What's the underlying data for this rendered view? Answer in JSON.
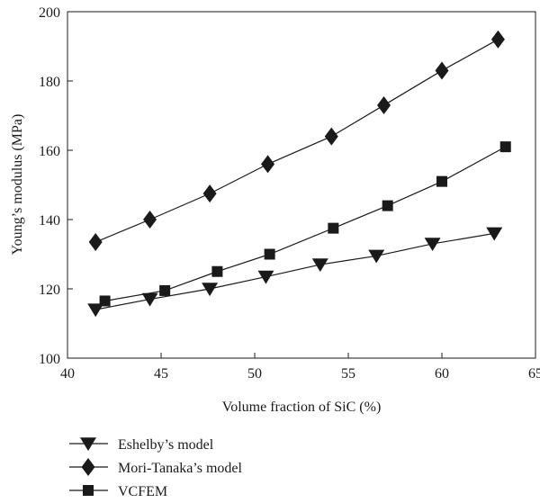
{
  "chart_data": {
    "type": "line",
    "title": "",
    "xlabel": "Volume fraction of SiC (%)",
    "ylabel": "Young’s modulus (MPa)",
    "xlim": [
      40,
      65
    ],
    "ylim": [
      100,
      200
    ],
    "xticks": [
      "40",
      "45",
      "50",
      "55",
      "60",
      "65"
    ],
    "yticks": [
      "100",
      "120",
      "140",
      "160",
      "180",
      "200"
    ],
    "grid": false,
    "legend_position": "bottom-left, below plot",
    "series": [
      {
        "name": "Eshelby’s model",
        "marker": "triangle-down",
        "x": [
          41.5,
          44.4,
          47.6,
          50.6,
          53.5,
          56.5,
          59.5,
          62.8
        ],
        "y": [
          114,
          117,
          120,
          123.5,
          127,
          129.5,
          133,
          136
        ]
      },
      {
        "name": "Mori-Tanaka’s model",
        "marker": "diamond",
        "x": [
          41.5,
          44.4,
          47.6,
          50.7,
          54.1,
          56.9,
          60.0,
          63.0
        ],
        "y": [
          133.5,
          140,
          147.5,
          156,
          164,
          173,
          183,
          192
        ]
      },
      {
        "name": "VCFEM",
        "marker": "square",
        "x": [
          42.0,
          45.2,
          48.0,
          50.8,
          54.2,
          57.1,
          60.0,
          63.4
        ],
        "y": [
          116.5,
          119.5,
          125,
          130,
          137.5,
          144,
          151,
          161
        ]
      }
    ],
    "colors": {
      "ink": "#1a1a1a"
    }
  }
}
